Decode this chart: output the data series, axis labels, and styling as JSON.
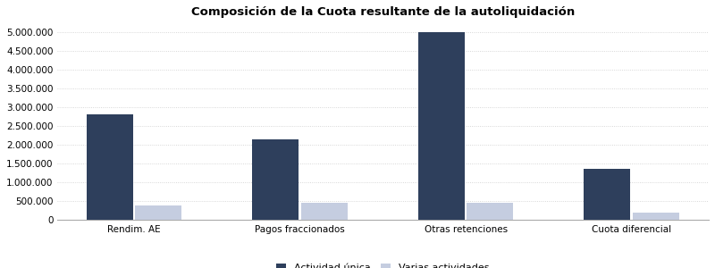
{
  "title": "Composición de la Cuota resultante de la autoliquidación",
  "categories": [
    "Rendim. AE",
    "Pagos fraccionados",
    "Otras retenciones",
    "Cuota diferencial"
  ],
  "series": [
    {
      "name": "Actividad única",
      "values": [
        2800000,
        2150000,
        5000000,
        1350000
      ],
      "color": "#2e3f5c"
    },
    {
      "name": "Varias actividades",
      "values": [
        370000,
        450000,
        460000,
        190000
      ],
      "color": "#c5cde0"
    }
  ],
  "ylim": [
    0,
    5250000
  ],
  "yticks": [
    0,
    500000,
    1000000,
    1500000,
    2000000,
    2500000,
    3000000,
    3500000,
    4000000,
    4500000,
    5000000
  ],
  "background_color": "#ffffff",
  "plot_bg_color": "#ffffff",
  "grid_color": "#cccccc",
  "bar_width": 0.28,
  "title_fontsize": 9.5,
  "legend_fontsize": 8,
  "tick_fontsize": 7.5
}
